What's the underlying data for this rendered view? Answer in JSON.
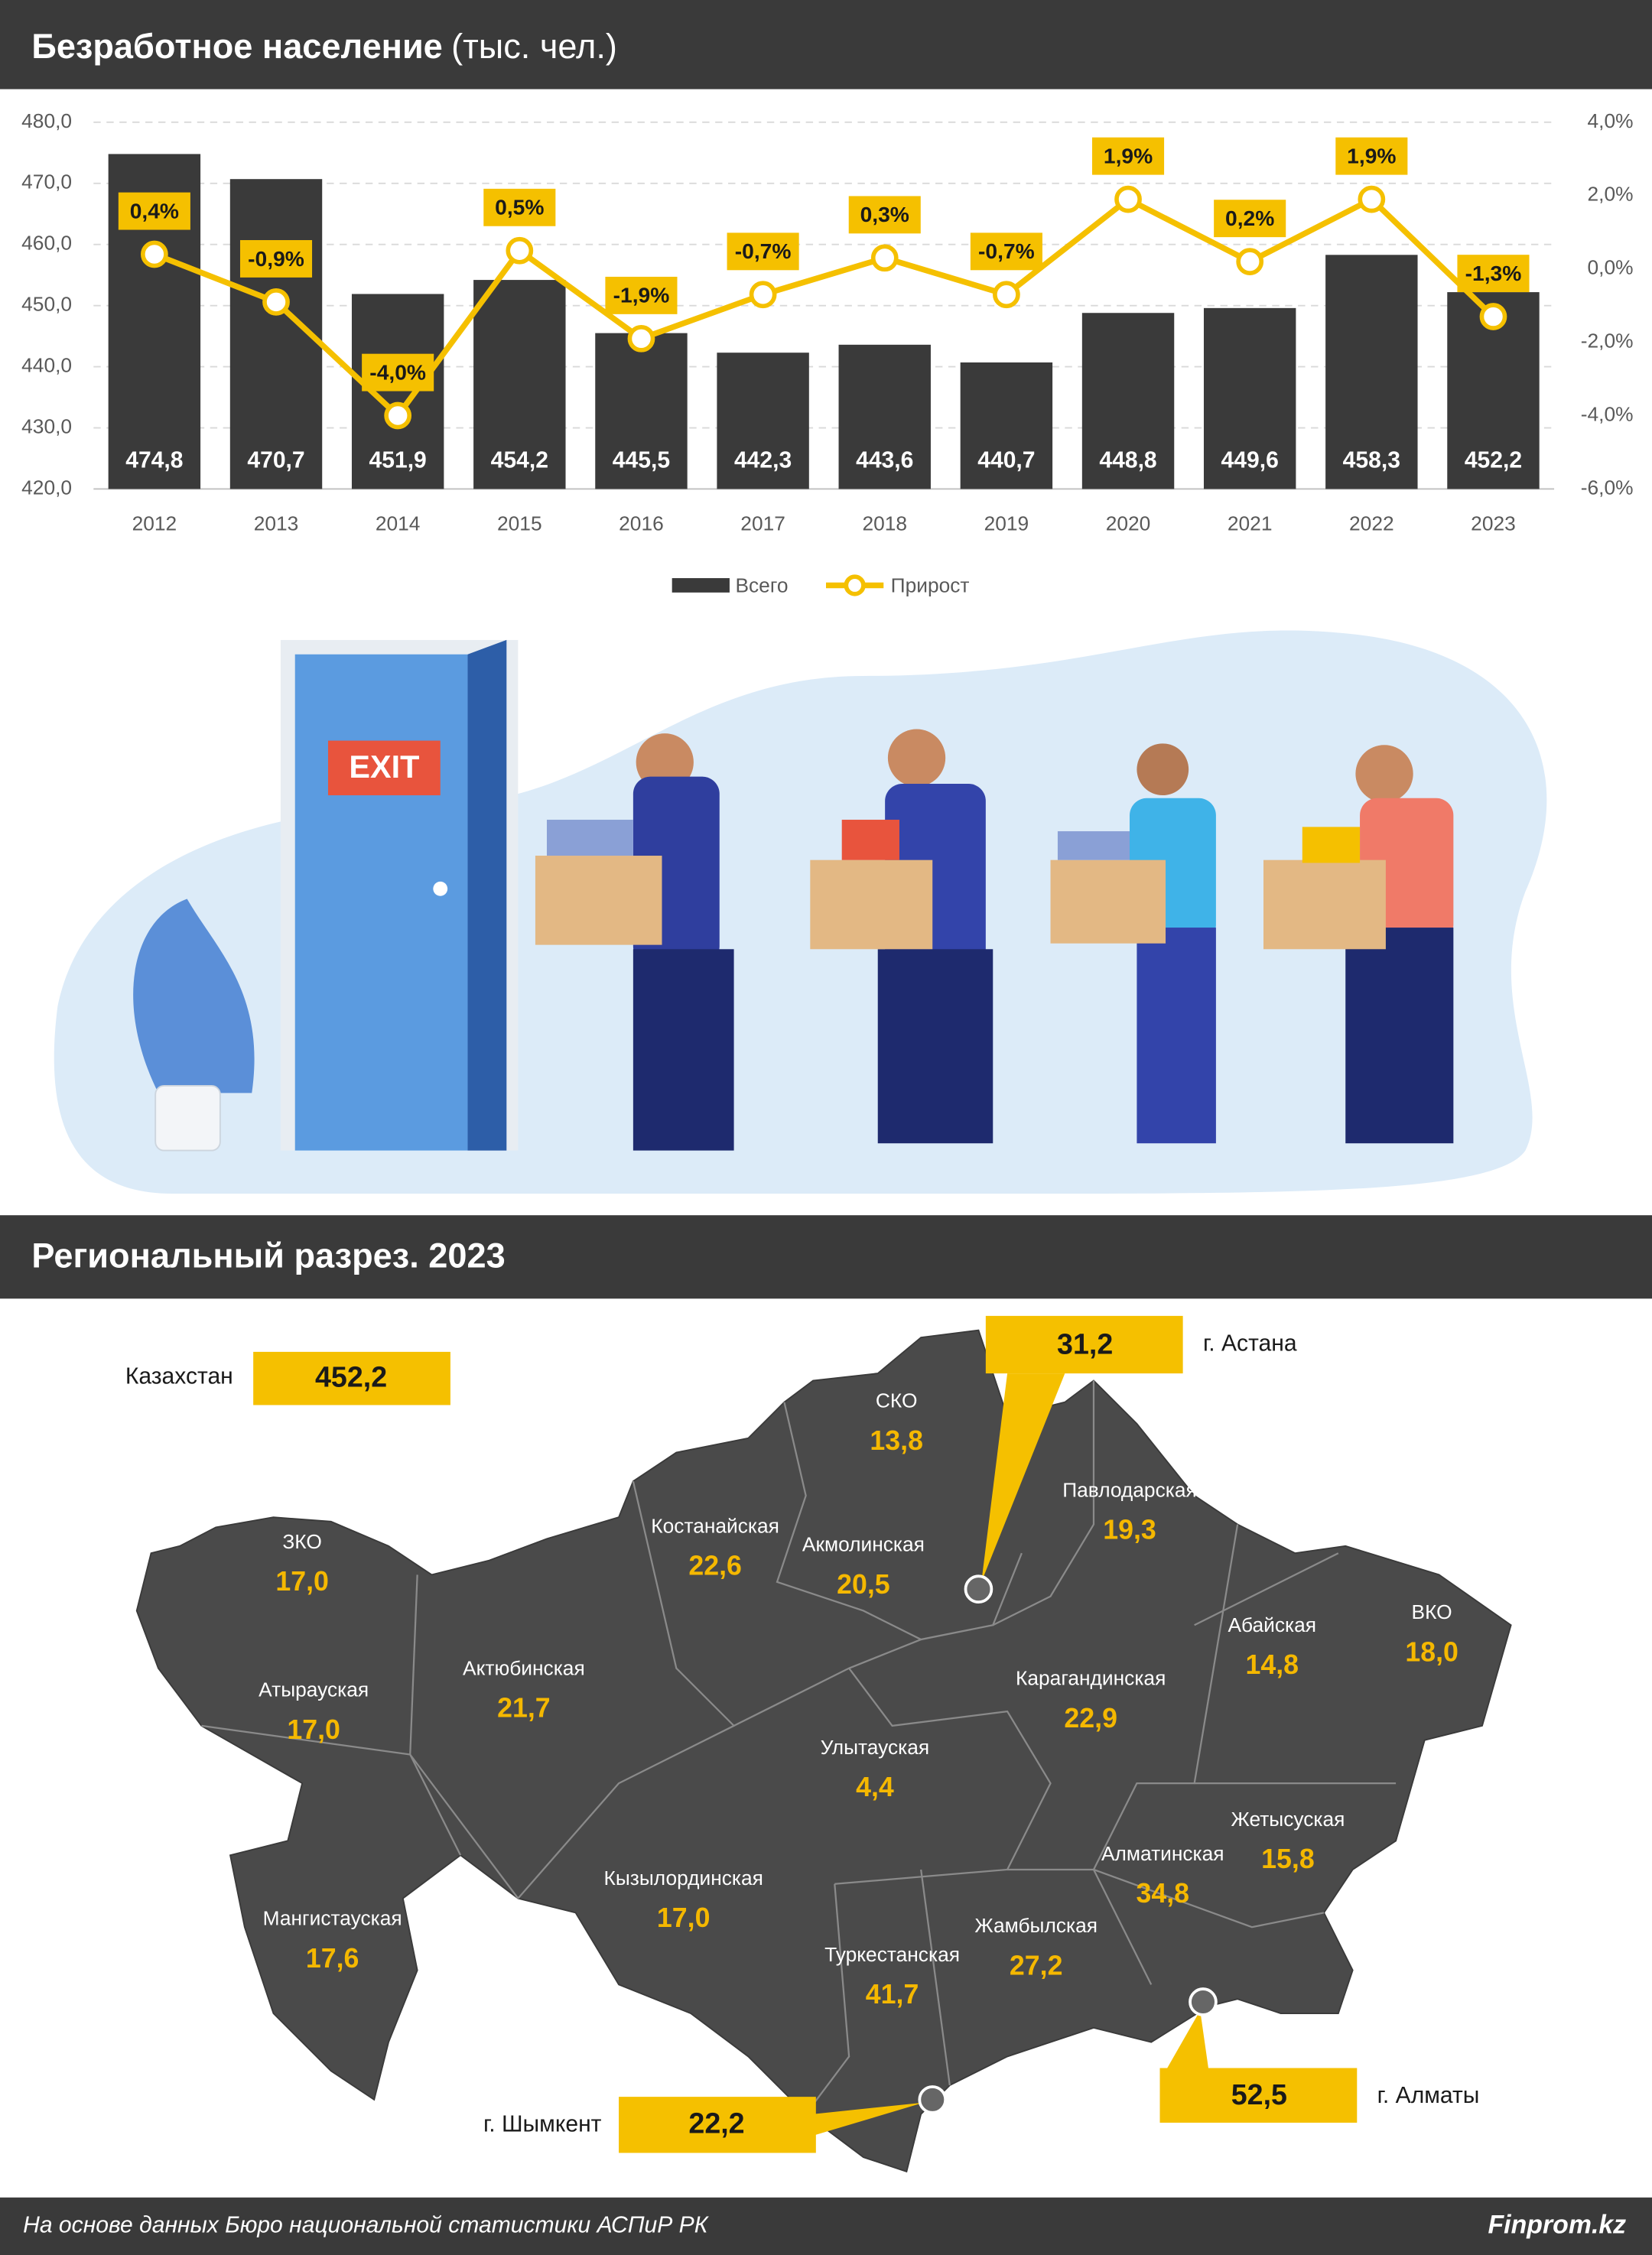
{
  "chart_data": {
    "type": "bar",
    "title": "Безработное население",
    "unit": "(тыс. чел.)",
    "categories": [
      "2012",
      "2013",
      "2014",
      "2015",
      "2016",
      "2017",
      "2018",
      "2019",
      "2020",
      "2021",
      "2022",
      "2023"
    ],
    "series": [
      {
        "name": "Всего",
        "type": "bar",
        "color": "#3a3a3a",
        "values": [
          474.8,
          470.7,
          451.9,
          454.2,
          445.5,
          442.3,
          443.6,
          440.7,
          448.8,
          449.6,
          458.3,
          452.2
        ],
        "value_labels": [
          "474,8",
          "470,7",
          "451,9",
          "454,2",
          "445,5",
          "442,3",
          "443,6",
          "440,7",
          "448,8",
          "449,6",
          "458,3",
          "452,2"
        ]
      },
      {
        "name": "Прирост",
        "type": "line",
        "axis": "y2",
        "color": "#f5c000",
        "values": [
          0.4,
          -0.9,
          -4.0,
          0.5,
          -1.9,
          -0.7,
          0.3,
          -0.7,
          1.9,
          0.2,
          1.9,
          -1.3
        ],
        "value_labels": [
          "0,4%",
          "-0,9%",
          "-4,0%",
          "0,5%",
          "-1,9%",
          "-0,7%",
          "0,3%",
          "-0,7%",
          "1,9%",
          "0,2%",
          "1,9%",
          "-1,3%"
        ]
      }
    ],
    "ylim": [
      420,
      480
    ],
    "yticks": [
      {
        "value": 420,
        "label": "420,0"
      },
      {
        "value": 430,
        "label": "430,0"
      },
      {
        "value": 440,
        "label": "440,0"
      },
      {
        "value": 450,
        "label": "450,0"
      },
      {
        "value": 460,
        "label": "460,0"
      },
      {
        "value": 470,
        "label": "470,0"
      },
      {
        "value": 480,
        "label": "480,0"
      }
    ],
    "y2lim": [
      -6,
      4
    ],
    "y2ticks": [
      {
        "value": -6,
        "label": "-6,0%"
      },
      {
        "value": -4,
        "label": "-4,0%"
      },
      {
        "value": -2,
        "label": "-2,0%"
      },
      {
        "value": 0,
        "label": "0,0%"
      },
      {
        "value": 2,
        "label": "2,0%"
      },
      {
        "value": 4,
        "label": "4,0%"
      }
    ],
    "grid": true,
    "legend": "bottom"
  },
  "illustration": {
    "sign": "EXIT"
  },
  "regional": {
    "title": "Региональный разрез. 2023",
    "regions": [
      {
        "name": "ЗКО",
        "value": "17,0"
      },
      {
        "name": "Атырауская",
        "value": "17,0"
      },
      {
        "name": "Актюбинская",
        "value": "21,7"
      },
      {
        "name": "Мангистауская",
        "value": "17,6"
      },
      {
        "name": "Костанайская",
        "value": "22,6"
      },
      {
        "name": "СКО",
        "value": "13,8"
      },
      {
        "name": "Акмолинская",
        "value": "20,5"
      },
      {
        "name": "Павлодарская",
        "value": "19,3"
      },
      {
        "name": "Абайская",
        "value": "14,8"
      },
      {
        "name": "ВКО",
        "value": "18,0"
      },
      {
        "name": "Карагандинская",
        "value": "22,9"
      },
      {
        "name": "Улытауская",
        "value": "4,4"
      },
      {
        "name": "Жетысуская",
        "value": "15,8"
      },
      {
        "name": "Алматинская",
        "value": "34,8"
      },
      {
        "name": "Кызылординская",
        "value": "17,0"
      },
      {
        "name": "Жамбылская",
        "value": "27,2"
      },
      {
        "name": "Туркестанская",
        "value": "41,7"
      }
    ],
    "callouts": [
      {
        "name": "Казахстан",
        "value": "452,2"
      },
      {
        "name": "г. Астана",
        "value": "31,2"
      },
      {
        "name": "г. Алматы",
        "value": "52,5"
      },
      {
        "name": "г. Шымкент",
        "value": "22,2"
      }
    ]
  },
  "footer": {
    "source": "На основе данных Бюро национальной статистики АСПиР РК",
    "brand": "Finprom.kz"
  }
}
